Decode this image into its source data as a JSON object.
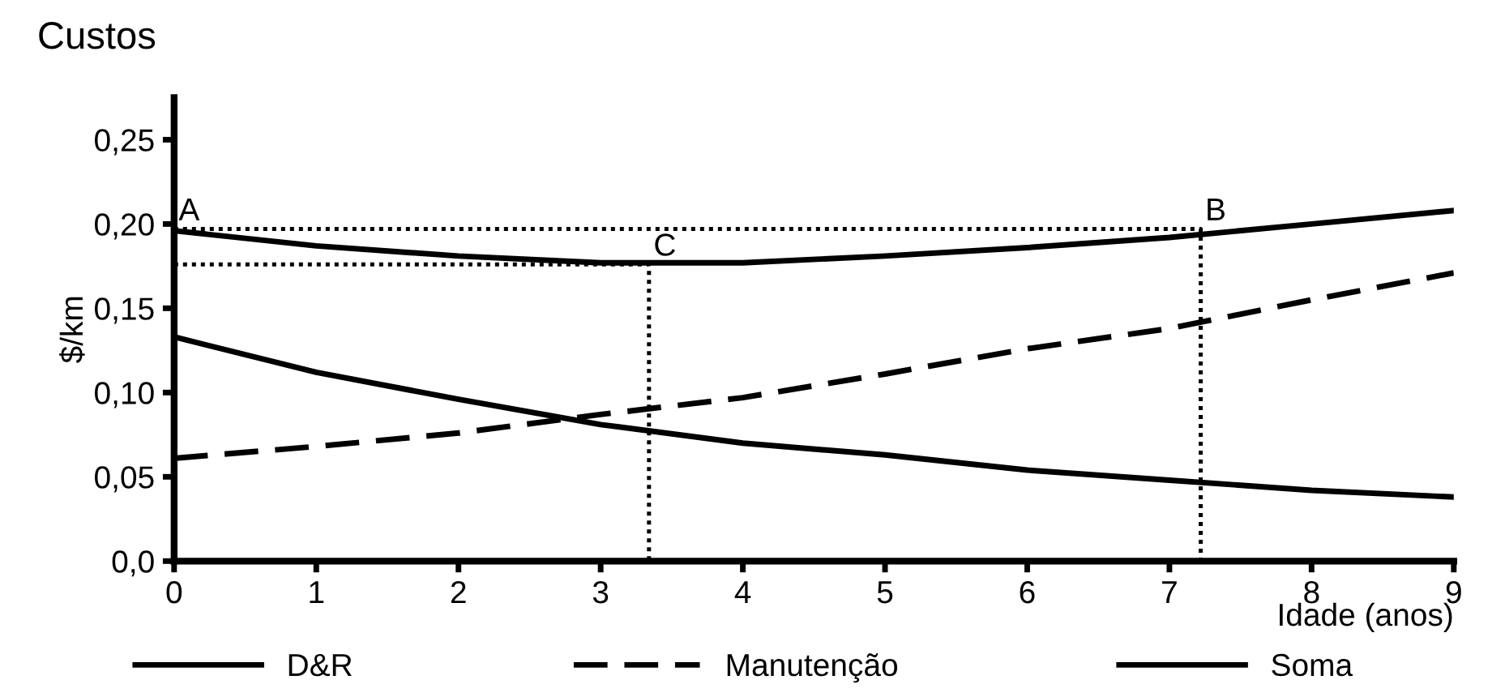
{
  "chart_data": {
    "type": "line",
    "title": "Custos",
    "ylabel": "$/km",
    "xlabel": "Idade (anos)",
    "x": [
      0,
      1,
      2,
      3,
      4,
      5,
      6,
      7,
      8,
      9
    ],
    "series": [
      {
        "name": "D&R",
        "color": "#000000",
        "line_style": "solid",
        "values": [
          0.133,
          0.112,
          0.096,
          0.081,
          0.07,
          0.063,
          0.054,
          0.048,
          0.042,
          0.038
        ]
      },
      {
        "name": "Manutenção",
        "color": "#000000",
        "line_style": "dashed",
        "values": [
          0.061,
          0.068,
          0.076,
          0.087,
          0.097,
          0.111,
          0.126,
          0.138,
          0.155,
          0.171
        ]
      },
      {
        "name": "Soma",
        "color": "#000000",
        "line_style": "solid",
        "values": [
          0.196,
          0.187,
          0.181,
          0.177,
          0.177,
          0.181,
          0.186,
          0.192,
          0.2,
          0.208
        ]
      },
      {
        "color": "#000000",
        "line_style": "dotted",
        "x": [
          0,
          7.22,
          7.22
        ],
        "values": [
          0.197,
          0.197,
          0
        ]
      },
      {
        "color": "#000000",
        "line_style": "dotted",
        "x": [
          0,
          3.34,
          3.34
        ],
        "values": [
          0.176,
          0.176,
          0
        ]
      }
    ],
    "annotations": [
      {
        "text": "A",
        "x": 0,
        "y": 0.197
      },
      {
        "text": "B",
        "x": 7.22,
        "y": 0.197
      },
      {
        "text": "C",
        "x": 3.34,
        "y": 0.176
      }
    ],
    "xlim": [
      0,
      9
    ],
    "ylim": [
      0,
      0.275
    ],
    "xticks": [
      0,
      1,
      2,
      3,
      4,
      5,
      6,
      7,
      8,
      9
    ],
    "yticks": [
      {
        "value": 0,
        "label": "0,0"
      },
      {
        "value": 0.05,
        "label": "0,05"
      },
      {
        "value": 0.1,
        "label": "0,10"
      },
      {
        "value": 0.15,
        "label": "0,15"
      },
      {
        "value": 0.2,
        "label": "0,20"
      },
      {
        "value": 0.25,
        "label": "0,25"
      }
    ],
    "grid": false,
    "legend": "bottom"
  }
}
